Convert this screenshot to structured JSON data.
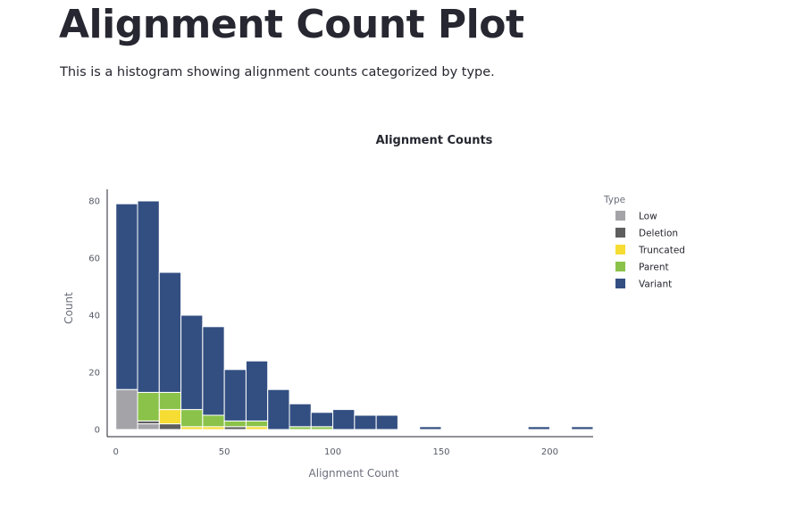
{
  "page": {
    "title": "Alignment Count Plot",
    "description": "This is a histogram showing alignment counts categorized by type."
  },
  "chart_data": {
    "type": "bar",
    "title": "Alignment Counts",
    "xlabel": "Alignment Count",
    "ylabel": "Count",
    "xlim": [
      -4,
      220
    ],
    "ylim": [
      0,
      85
    ],
    "x_ticks": [
      0,
      50,
      100,
      150,
      200
    ],
    "y_ticks": [
      0,
      20,
      40,
      60,
      80
    ],
    "bin_width": 10,
    "grid": false,
    "stacked": true,
    "legend": {
      "title": "Type",
      "position": "right"
    },
    "bins": [
      [
        0,
        10
      ],
      [
        10,
        20
      ],
      [
        20,
        30
      ],
      [
        30,
        40
      ],
      [
        40,
        50
      ],
      [
        50,
        60
      ],
      [
        60,
        70
      ],
      [
        70,
        80
      ],
      [
        80,
        90
      ],
      [
        90,
        100
      ],
      [
        100,
        110
      ],
      [
        110,
        120
      ],
      [
        120,
        130
      ],
      [
        140,
        150
      ],
      [
        190,
        200
      ],
      [
        210,
        220
      ]
    ],
    "series": [
      {
        "name": "Low",
        "color": "#a3a3a8",
        "values": [
          14,
          2,
          0,
          0,
          0,
          0,
          0,
          0,
          0,
          0,
          0,
          0,
          0,
          0,
          0,
          0
        ]
      },
      {
        "name": "Deletion",
        "color": "#5e5e5e",
        "values": [
          0,
          1,
          2,
          0,
          0,
          1,
          0,
          0,
          0,
          0,
          0,
          0,
          0,
          0,
          0,
          0
        ]
      },
      {
        "name": "Truncated",
        "color": "#f6dc33",
        "values": [
          0,
          0,
          5,
          1,
          1,
          0,
          1,
          0,
          0,
          0,
          0,
          0,
          0,
          0,
          0,
          0
        ]
      },
      {
        "name": "Parent",
        "color": "#8bc34a",
        "values": [
          0,
          10,
          6,
          6,
          4,
          2,
          2,
          0,
          1,
          1,
          0,
          0,
          0,
          0,
          0,
          0
        ]
      },
      {
        "name": "Variant",
        "color": "#334f82",
        "values": [
          65,
          67,
          42,
          33,
          31,
          18,
          21,
          14,
          8,
          5,
          7,
          5,
          5,
          1,
          1,
          1
        ]
      }
    ]
  }
}
